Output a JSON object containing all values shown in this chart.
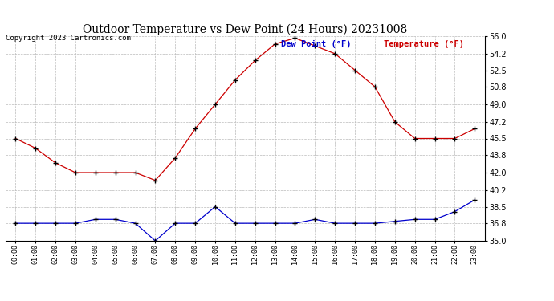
{
  "title": "Outdoor Temperature vs Dew Point (24 Hours) 20231008",
  "copyright": "Copyright 2023 Cartronics.com",
  "legend_dew": "Dew Point (°F)",
  "legend_temp": "Temperature (°F)",
  "hours": [
    "00:00",
    "01:00",
    "02:00",
    "03:00",
    "04:00",
    "05:00",
    "06:00",
    "07:00",
    "08:00",
    "09:00",
    "10:00",
    "11:00",
    "12:00",
    "13:00",
    "14:00",
    "15:00",
    "16:00",
    "17:00",
    "18:00",
    "19:00",
    "20:00",
    "21:00",
    "22:00",
    "23:00"
  ],
  "temperature": [
    45.5,
    44.5,
    43.0,
    42.0,
    42.0,
    42.0,
    42.0,
    41.2,
    43.5,
    46.5,
    49.0,
    51.5,
    53.5,
    55.2,
    55.8,
    55.0,
    54.2,
    52.5,
    50.8,
    47.2,
    45.5,
    45.5,
    45.5,
    46.5
  ],
  "dew_point": [
    36.8,
    36.8,
    36.8,
    36.8,
    37.2,
    37.2,
    36.8,
    35.0,
    36.8,
    36.8,
    38.5,
    36.8,
    36.8,
    36.8,
    36.8,
    37.2,
    36.8,
    36.8,
    36.8,
    37.0,
    37.2,
    37.2,
    38.0,
    39.2
  ],
  "ylim": [
    35.0,
    56.0
  ],
  "yticks": [
    35.0,
    36.8,
    38.5,
    40.2,
    42.0,
    43.8,
    45.5,
    47.2,
    49.0,
    50.8,
    52.5,
    54.2,
    56.0
  ],
  "temp_color": "#cc0000",
  "dew_color": "#0000cc",
  "bg_color": "#ffffff",
  "grid_color": "#bbbbbb",
  "title_fontsize": 10,
  "copyright_fontsize": 6.5,
  "legend_fontsize": 7.5,
  "tick_fontsize": 6,
  "ytick_fontsize": 7
}
